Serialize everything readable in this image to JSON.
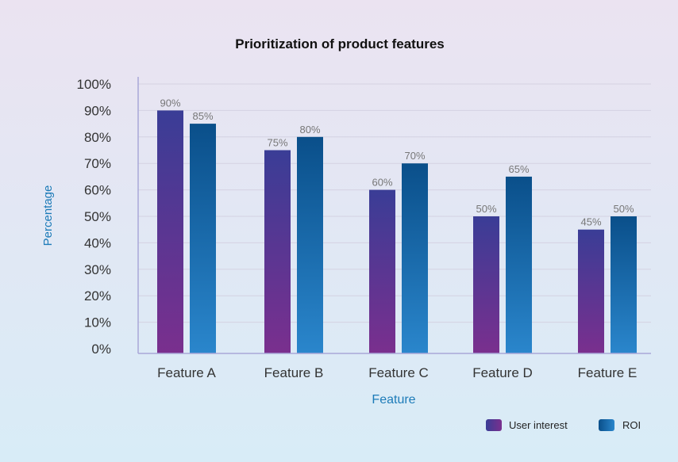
{
  "chart_data": {
    "type": "bar",
    "title": "Prioritization of product features",
    "xlabel": "Feature",
    "ylabel": "Percentage",
    "ylim": [
      0,
      100
    ],
    "yticks": [
      "0%",
      "10%",
      "20%",
      "30%",
      "40%",
      "50%",
      "60%",
      "70%",
      "80%",
      "90%",
      "100%"
    ],
    "categories": [
      "Feature A",
      "Feature B",
      "Feature C",
      "Feature D",
      "Feature E"
    ],
    "series": [
      {
        "name": "User interest",
        "values": [
          90,
          75,
          60,
          50,
          45
        ],
        "labels": [
          "90%",
          "75%",
          "60%",
          "50%",
          "45%"
        ],
        "colors": [
          "#3a3d96",
          "#7a2f8e"
        ]
      },
      {
        "name": "ROI",
        "values": [
          85,
          80,
          70,
          65,
          50
        ],
        "labels": [
          "85%",
          "80%",
          "70%",
          "65%",
          "50%"
        ],
        "colors": [
          "#0a4f8a",
          "#2a86cc"
        ]
      }
    ],
    "grid": true,
    "legend": "bottom-right"
  }
}
